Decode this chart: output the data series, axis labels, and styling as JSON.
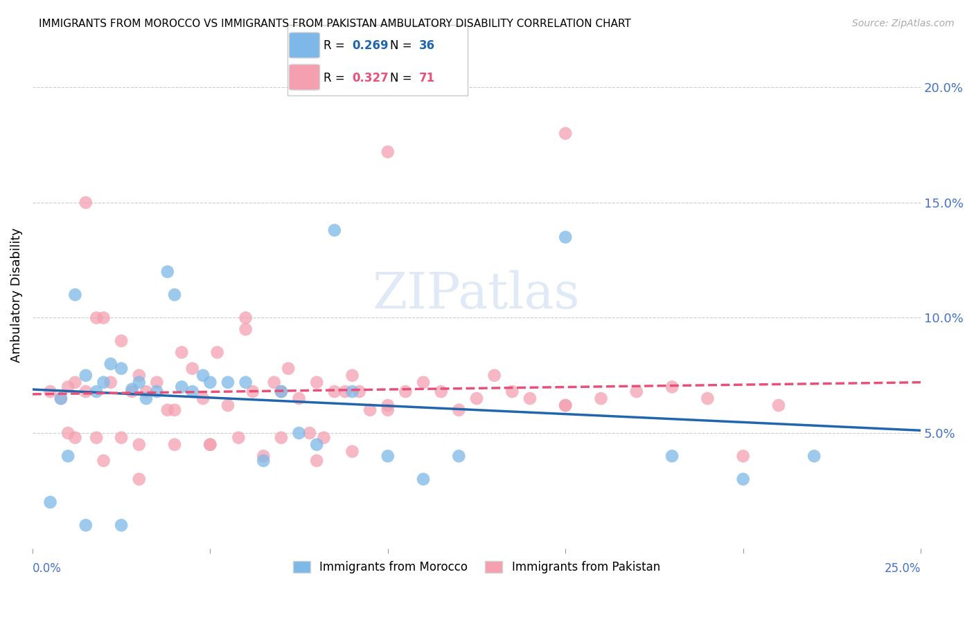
{
  "title": "IMMIGRANTS FROM MOROCCO VS IMMIGRANTS FROM PAKISTAN AMBULATORY DISABILITY CORRELATION CHART",
  "source": "Source: ZipAtlas.com",
  "ylabel": "Ambulatory Disability",
  "ytick_labels": [
    "5.0%",
    "10.0%",
    "15.0%",
    "20.0%"
  ],
  "ytick_values": [
    0.05,
    0.1,
    0.15,
    0.2
  ],
  "xlim": [
    0.0,
    0.25
  ],
  "ylim": [
    0.0,
    0.22
  ],
  "morocco_R": "0.269",
  "morocco_N": "36",
  "pakistan_R": "0.327",
  "pakistan_N": "71",
  "morocco_color": "#7db8e8",
  "pakistan_color": "#f4a0b0",
  "morocco_line_color": "#2166ac",
  "pakistan_line_color": "#e8507a",
  "background_color": "#ffffff",
  "morocco_x": [
    0.005,
    0.008,
    0.012,
    0.015,
    0.018,
    0.02,
    0.022,
    0.025,
    0.028,
    0.03,
    0.032,
    0.035,
    0.038,
    0.04,
    0.042,
    0.045,
    0.048,
    0.05,
    0.055,
    0.06,
    0.065,
    0.07,
    0.075,
    0.08,
    0.085,
    0.09,
    0.1,
    0.11,
    0.12,
    0.15,
    0.18,
    0.2,
    0.22,
    0.015,
    0.025,
    0.01
  ],
  "morocco_y": [
    0.02,
    0.065,
    0.11,
    0.075,
    0.068,
    0.072,
    0.08,
    0.078,
    0.069,
    0.072,
    0.065,
    0.068,
    0.12,
    0.11,
    0.07,
    0.068,
    0.075,
    0.072,
    0.072,
    0.072,
    0.038,
    0.068,
    0.05,
    0.045,
    0.138,
    0.068,
    0.04,
    0.03,
    0.04,
    0.135,
    0.04,
    0.03,
    0.04,
    0.01,
    0.01,
    0.04
  ],
  "pakistan_x": [
    0.005,
    0.008,
    0.01,
    0.012,
    0.015,
    0.018,
    0.02,
    0.022,
    0.025,
    0.028,
    0.03,
    0.032,
    0.035,
    0.038,
    0.04,
    0.042,
    0.045,
    0.048,
    0.05,
    0.052,
    0.055,
    0.058,
    0.06,
    0.062,
    0.065,
    0.068,
    0.07,
    0.072,
    0.075,
    0.078,
    0.08,
    0.082,
    0.085,
    0.088,
    0.09,
    0.092,
    0.095,
    0.1,
    0.105,
    0.11,
    0.115,
    0.12,
    0.125,
    0.13,
    0.135,
    0.14,
    0.15,
    0.16,
    0.17,
    0.18,
    0.19,
    0.2,
    0.21,
    0.012,
    0.018,
    0.025,
    0.03,
    0.04,
    0.05,
    0.06,
    0.07,
    0.08,
    0.09,
    0.1,
    0.15,
    0.01,
    0.015,
    0.02,
    0.03,
    0.15,
    0.1
  ],
  "pakistan_y": [
    0.068,
    0.065,
    0.07,
    0.072,
    0.068,
    0.1,
    0.1,
    0.072,
    0.09,
    0.068,
    0.075,
    0.068,
    0.072,
    0.06,
    0.06,
    0.085,
    0.078,
    0.065,
    0.045,
    0.085,
    0.062,
    0.048,
    0.095,
    0.068,
    0.04,
    0.072,
    0.068,
    0.078,
    0.065,
    0.05,
    0.072,
    0.048,
    0.068,
    0.068,
    0.075,
    0.068,
    0.06,
    0.062,
    0.068,
    0.072,
    0.068,
    0.06,
    0.065,
    0.075,
    0.068,
    0.065,
    0.062,
    0.065,
    0.068,
    0.07,
    0.065,
    0.04,
    0.062,
    0.048,
    0.048,
    0.048,
    0.045,
    0.045,
    0.045,
    0.1,
    0.048,
    0.038,
    0.042,
    0.172,
    0.062,
    0.05,
    0.15,
    0.038,
    0.03,
    0.18,
    0.06
  ]
}
